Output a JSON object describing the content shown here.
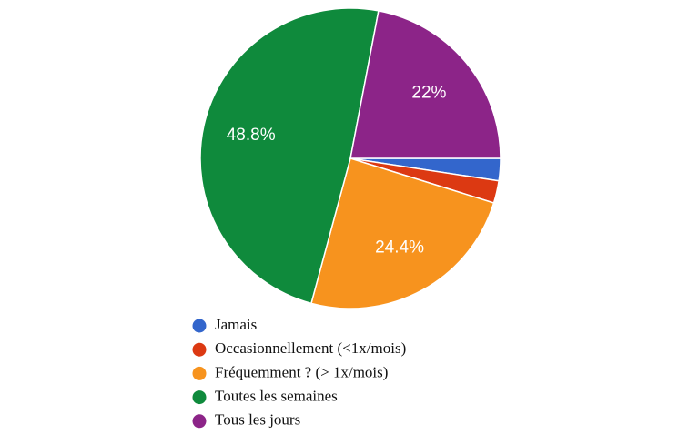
{
  "chart_data": {
    "type": "pie",
    "categories": [
      "Jamais",
      "Occasionnellement (<1x/mois)",
      "Fréquemment ? (> 1x/mois)",
      "Toutes les semaines",
      "Tous les jours"
    ],
    "values": [
      2.4,
      2.4,
      24.4,
      48.8,
      22
    ],
    "value_labels": [
      null,
      null,
      "24.4%",
      "48.8%",
      "22%"
    ],
    "colors": [
      "#3366cc",
      "#dc3912",
      "#f7931e",
      "#0f8a3c",
      "#8c2488"
    ]
  }
}
